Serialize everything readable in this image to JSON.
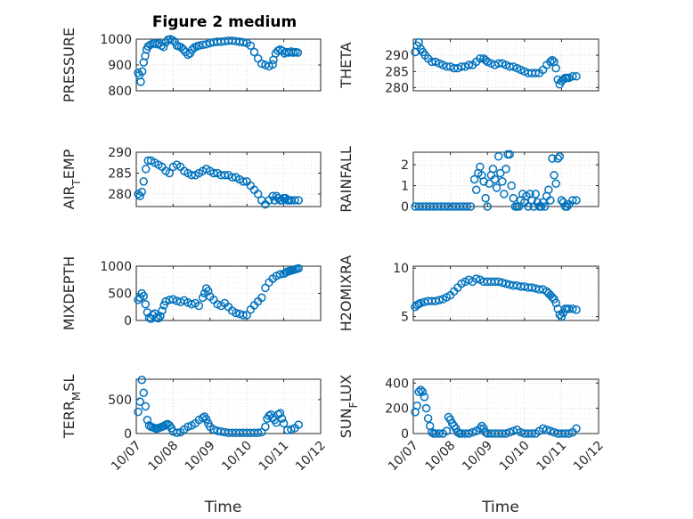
{
  "figure": {
    "title": "Figure 2 medium"
  },
  "colors": {
    "marker": "#0072bd",
    "axis": "#262626",
    "grid": "#d9d9d9"
  },
  "chart_data": [
    {
      "type": "scatter",
      "ylabel": "PRESSURE",
      "xlabel": "",
      "xlim": [
        0,
        5
      ],
      "ylim": [
        800,
        1000
      ],
      "yticks": [
        "800",
        "900",
        "1000"
      ],
      "xticks": [],
      "grid": true,
      "x": [
        0.05,
        0.08,
        0.12,
        0.16,
        0.2,
        0.24,
        0.28,
        0.32,
        0.38,
        0.44,
        0.5,
        0.56,
        0.62,
        0.68,
        0.74,
        0.8,
        0.86,
        0.92,
        0.98,
        1.04,
        1.1,
        1.16,
        1.22,
        1.28,
        1.34,
        1.4,
        1.46,
        1.52,
        1.58,
        1.64,
        1.7,
        1.8,
        1.9,
        2.0,
        2.1,
        2.2,
        2.3,
        2.4,
        2.5,
        2.6,
        2.7,
        2.8,
        2.9,
        3.0,
        3.1,
        3.2,
        3.3,
        3.4,
        3.5,
        3.6,
        3.7,
        3.72,
        3.78,
        3.84,
        3.9,
        3.96,
        4.02,
        4.08,
        4.14,
        4.2,
        4.26,
        4.32,
        4.38
      ],
      "y": [
        870,
        860,
        835,
        875,
        910,
        935,
        960,
        972,
        978,
        982,
        985,
        980,
        983,
        975,
        970,
        988,
        998,
        1000,
        996,
        990,
        975,
        972,
        968,
        960,
        950,
        940,
        945,
        960,
        968,
        972,
        975,
        978,
        980,
        985,
        988,
        990,
        990,
        992,
        994,
        994,
        992,
        990,
        988,
        985,
        975,
        950,
        925,
        905,
        900,
        895,
        902,
        920,
        945,
        955,
        960,
        955,
        945,
        950,
        948,
        952,
        948,
        950,
        948
      ]
    },
    {
      "type": "scatter",
      "ylabel": "THETA",
      "xlabel": "",
      "xlim": [
        0,
        5
      ],
      "ylim": [
        279,
        295
      ],
      "yticks": [
        "280",
        "285",
        "290"
      ],
      "xticks": [],
      "grid": true,
      "x": [
        0.05,
        0.1,
        0.15,
        0.2,
        0.26,
        0.32,
        0.4,
        0.5,
        0.6,
        0.7,
        0.8,
        0.9,
        1.0,
        1.1,
        1.2,
        1.3,
        1.4,
        1.5,
        1.6,
        1.7,
        1.8,
        1.9,
        1.95,
        2.0,
        2.1,
        2.2,
        2.3,
        2.4,
        2.5,
        2.6,
        2.7,
        2.8,
        2.9,
        3.0,
        3.1,
        3.2,
        3.3,
        3.4,
        3.5,
        3.6,
        3.7,
        3.75,
        3.8,
        3.85,
        3.9,
        3.95,
        4.0,
        4.05,
        4.1,
        4.15,
        4.2,
        4.3,
        4.4
      ],
      "y": [
        291,
        293,
        294,
        292,
        291,
        290,
        289,
        288,
        288,
        287.5,
        287,
        286.5,
        286.5,
        286,
        286,
        286.5,
        286.5,
        287,
        287,
        288,
        289,
        289,
        288.5,
        288,
        287.5,
        287,
        287.5,
        287.5,
        287,
        286.5,
        286.5,
        286,
        285.5,
        285,
        284.5,
        284.5,
        284.5,
        284.5,
        285.5,
        287,
        288,
        288.5,
        288,
        286,
        282.5,
        281,
        282,
        282.5,
        283,
        283,
        283,
        283.5,
        283.5
      ]
    },
    {
      "type": "scatter",
      "ylabel": "AIR_TEMP",
      "xlabel": "",
      "xlim": [
        0,
        5
      ],
      "ylim": [
        277,
        290
      ],
      "yticks": [
        "280",
        "285",
        "290"
      ],
      "xticks": [],
      "grid": true,
      "x": [
        0.05,
        0.1,
        0.15,
        0.2,
        0.26,
        0.32,
        0.4,
        0.5,
        0.6,
        0.7,
        0.8,
        0.9,
        1.0,
        1.1,
        1.2,
        1.3,
        1.4,
        1.5,
        1.6,
        1.7,
        1.8,
        1.9,
        2.0,
        2.1,
        2.2,
        2.3,
        2.4,
        2.5,
        2.6,
        2.7,
        2.8,
        2.9,
        3.0,
        3.1,
        3.2,
        3.3,
        3.4,
        3.5,
        3.6,
        3.7,
        3.75,
        3.8,
        3.85,
        3.9,
        3.95,
        4.0,
        4.05,
        4.1,
        4.15,
        4.2,
        4.3,
        4.4
      ],
      "y": [
        280,
        279.5,
        280.5,
        283,
        286,
        288,
        288,
        287.5,
        287,
        286.5,
        285.5,
        285,
        286.5,
        287,
        286.5,
        285.5,
        285,
        284.5,
        284.5,
        285,
        285.5,
        286,
        285.5,
        285,
        285,
        284.5,
        284.5,
        284.5,
        284,
        284,
        283.5,
        283,
        283,
        282,
        281,
        280,
        278.5,
        277.5,
        278.5,
        279.5,
        278.5,
        279.5,
        279,
        278.5,
        278.5,
        279,
        279,
        278.5,
        278.5,
        278.5,
        278.5,
        278.5
      ]
    },
    {
      "type": "scatter",
      "ylabel": "RAINFALL",
      "xlabel": "",
      "xlim": [
        0,
        5
      ],
      "ylim": [
        0,
        2.6
      ],
      "yticks": [
        "0",
        "1",
        "2"
      ],
      "xticks": [],
      "grid": true,
      "x": [
        0.05,
        0.15,
        0.25,
        0.35,
        0.45,
        0.55,
        0.65,
        0.75,
        0.85,
        0.95,
        1.05,
        1.15,
        1.25,
        1.35,
        1.45,
        1.55,
        1.65,
        1.7,
        1.75,
        1.8,
        1.85,
        1.9,
        1.95,
        2.0,
        2.05,
        2.1,
        2.15,
        2.2,
        2.25,
        2.3,
        2.35,
        2.4,
        2.45,
        2.5,
        2.55,
        2.6,
        2.65,
        2.7,
        2.75,
        2.8,
        2.85,
        2.9,
        2.95,
        3.0,
        3.05,
        3.1,
        3.15,
        3.2,
        3.25,
        3.3,
        3.35,
        3.4,
        3.45,
        3.5,
        3.55,
        3.6,
        3.65,
        3.7,
        3.75,
        3.8,
        3.85,
        3.9,
        3.95,
        4.0,
        4.05,
        4.1,
        4.15,
        4.2,
        4.3,
        4.4
      ],
      "y": [
        0,
        0,
        0,
        0,
        0,
        0,
        0,
        0,
        0,
        0,
        0,
        0,
        0,
        0,
        0,
        0,
        1.3,
        0.8,
        1.6,
        1.9,
        1.5,
        1.2,
        0.4,
        0,
        1.1,
        1.5,
        1.8,
        1.3,
        0.9,
        2.4,
        1.6,
        1.2,
        0.6,
        1.8,
        2.5,
        2.5,
        1.0,
        0.4,
        0,
        0,
        0,
        0.3,
        0.6,
        0.2,
        0.5,
        0,
        0.6,
        0.3,
        0,
        0.6,
        0.2,
        0,
        0,
        0.2,
        0,
        0.5,
        0.8,
        0.3,
        2.3,
        1.5,
        1.1,
        2.3,
        2.4,
        0.3,
        0.2,
        0,
        0,
        0.1,
        0.3,
        0.3
      ]
    },
    {
      "type": "scatter",
      "ylabel": "MIXDEPTH",
      "xlabel": "",
      "xlim": [
        0,
        5
      ],
      "ylim": [
        0,
        1000
      ],
      "yticks": [
        "0",
        "500",
        "1000"
      ],
      "xticks": [],
      "grid": true,
      "x": [
        0.05,
        0.1,
        0.15,
        0.2,
        0.25,
        0.3,
        0.35,
        0.4,
        0.45,
        0.5,
        0.55,
        0.6,
        0.65,
        0.7,
        0.75,
        0.8,
        0.9,
        1.0,
        1.1,
        1.2,
        1.3,
        1.4,
        1.5,
        1.6,
        1.7,
        1.8,
        1.85,
        1.9,
        1.95,
        2.0,
        2.1,
        2.2,
        2.3,
        2.4,
        2.5,
        2.6,
        2.7,
        2.8,
        2.9,
        3.0,
        3.1,
        3.2,
        3.3,
        3.4,
        3.5,
        3.6,
        3.7,
        3.8,
        3.9,
        4.0,
        4.05,
        4.1,
        4.15,
        4.2,
        4.25,
        4.3,
        4.35,
        4.4
      ],
      "y": [
        380,
        420,
        500,
        450,
        300,
        150,
        50,
        30,
        100,
        130,
        50,
        40,
        80,
        180,
        280,
        350,
        380,
        390,
        360,
        340,
        370,
        330,
        300,
        320,
        270,
        420,
        500,
        590,
        540,
        440,
        380,
        300,
        270,
        320,
        250,
        180,
        140,
        120,
        100,
        100,
        200,
        280,
        350,
        420,
        600,
        700,
        770,
        820,
        850,
        860,
        880,
        900,
        910,
        920,
        930,
        940,
        950,
        960
      ]
    },
    {
      "type": "scatter",
      "ylabel": "H2OMIXRA",
      "xlabel": "",
      "xlim": [
        0,
        5
      ],
      "ylim": [
        4.6,
        10.2
      ],
      "yticks": [
        "5",
        "10"
      ],
      "xticks": [],
      "grid": true,
      "x": [
        0.05,
        0.1,
        0.15,
        0.2,
        0.3,
        0.4,
        0.5,
        0.6,
        0.7,
        0.8,
        0.9,
        1.0,
        1.1,
        1.2,
        1.3,
        1.4,
        1.5,
        1.6,
        1.7,
        1.8,
        1.9,
        2.0,
        2.1,
        2.2,
        2.3,
        2.4,
        2.5,
        2.6,
        2.7,
        2.8,
        2.9,
        3.0,
        3.1,
        3.2,
        3.3,
        3.4,
        3.5,
        3.6,
        3.65,
        3.7,
        3.75,
        3.8,
        3.85,
        3.9,
        3.95,
        4.0,
        4.05,
        4.1,
        4.15,
        4.2,
        4.3,
        4.4
      ],
      "y": [
        6.0,
        6.2,
        6.3,
        6.4,
        6.5,
        6.6,
        6.6,
        6.6,
        6.7,
        6.8,
        7.0,
        7.2,
        7.6,
        8.0,
        8.4,
        8.6,
        8.8,
        8.6,
        8.9,
        8.8,
        8.6,
        8.6,
        8.6,
        8.6,
        8.6,
        8.5,
        8.4,
        8.3,
        8.2,
        8.2,
        8.1,
        8.1,
        8.0,
        8.0,
        7.9,
        7.8,
        7.8,
        7.6,
        7.4,
        7.2,
        7.0,
        6.8,
        6.4,
        5.8,
        5.2,
        5.0,
        5.4,
        5.8,
        5.8,
        5.8,
        5.8,
        5.7
      ]
    },
    {
      "type": "scatter",
      "ylabel": "TERR_MSL",
      "xlabel": "Time",
      "xlim": [
        0,
        5
      ],
      "ylim": [
        0,
        800
      ],
      "yticks": [
        "0",
        "500"
      ],
      "xticks": [
        "10/07",
        "10/08",
        "10/09",
        "10/10",
        "10/11",
        "10/12"
      ],
      "grid": true,
      "x": [
        0.05,
        0.1,
        0.15,
        0.2,
        0.25,
        0.3,
        0.35,
        0.4,
        0.45,
        0.5,
        0.55,
        0.6,
        0.65,
        0.7,
        0.75,
        0.8,
        0.85,
        0.9,
        0.95,
        1.0,
        1.1,
        1.2,
        1.3,
        1.4,
        1.5,
        1.6,
        1.7,
        1.8,
        1.85,
        1.9,
        1.95,
        2.0,
        2.1,
        2.2,
        2.3,
        2.4,
        2.5,
        2.6,
        2.7,
        2.8,
        2.9,
        3.0,
        3.1,
        3.2,
        3.3,
        3.4,
        3.5,
        3.55,
        3.6,
        3.65,
        3.7,
        3.75,
        3.8,
        3.85,
        3.9,
        3.95,
        4.0,
        4.1,
        4.2,
        4.3,
        4.4
      ],
      "y": [
        320,
        470,
        790,
        600,
        400,
        200,
        120,
        100,
        90,
        80,
        70,
        80,
        90,
        100,
        110,
        130,
        140,
        120,
        80,
        30,
        10,
        20,
        60,
        100,
        120,
        150,
        200,
        230,
        250,
        210,
        150,
        100,
        60,
        40,
        30,
        20,
        10,
        10,
        10,
        10,
        10,
        10,
        10,
        10,
        10,
        20,
        100,
        220,
        260,
        280,
        230,
        200,
        160,
        280,
        300,
        220,
        150,
        50,
        60,
        80,
        130
      ]
    },
    {
      "type": "scatter",
      "ylabel": "SUN_FLUX",
      "xlabel": "Time",
      "xlim": [
        0,
        5
      ],
      "ylim": [
        0,
        430
      ],
      "yticks": [
        "0",
        "200",
        "400"
      ],
      "xticks": [
        "10/07",
        "10/08",
        "10/09",
        "10/10",
        "10/11",
        "10/12"
      ],
      "grid": true,
      "x": [
        0.05,
        0.1,
        0.15,
        0.2,
        0.25,
        0.3,
        0.35,
        0.4,
        0.45,
        0.5,
        0.55,
        0.6,
        0.7,
        0.8,
        0.9,
        0.95,
        1.0,
        1.05,
        1.1,
        1.15,
        1.2,
        1.25,
        1.3,
        1.4,
        1.5,
        1.6,
        1.7,
        1.8,
        1.85,
        1.9,
        1.95,
        2.0,
        2.1,
        2.2,
        2.3,
        2.4,
        2.5,
        2.6,
        2.7,
        2.8,
        2.9,
        3.0,
        3.1,
        3.2,
        3.3,
        3.4,
        3.5,
        3.6,
        3.7,
        3.8,
        3.9,
        4.0,
        4.1,
        4.2,
        4.3,
        4.4
      ],
      "y": [
        170,
        220,
        330,
        345,
        330,
        290,
        200,
        120,
        60,
        10,
        0,
        0,
        0,
        0,
        20,
        130,
        110,
        80,
        60,
        40,
        10,
        0,
        0,
        0,
        0,
        10,
        20,
        40,
        60,
        40,
        10,
        0,
        0,
        0,
        0,
        0,
        0,
        10,
        20,
        30,
        10,
        0,
        0,
        0,
        0,
        20,
        40,
        30,
        20,
        10,
        0,
        0,
        0,
        0,
        10,
        40
      ]
    }
  ]
}
